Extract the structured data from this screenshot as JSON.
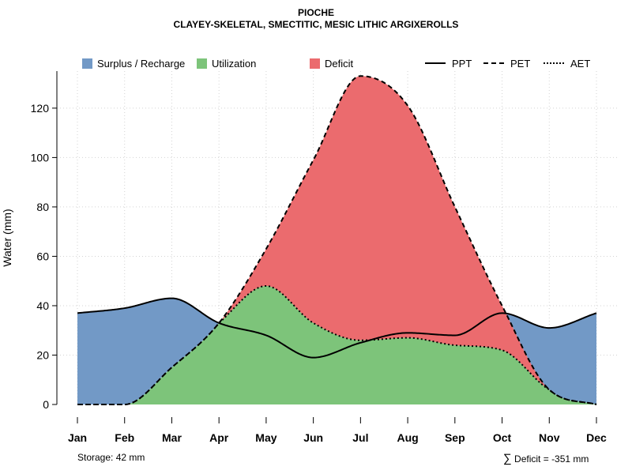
{
  "chart_data": {
    "type": "area",
    "title": "PIOCHE",
    "subtitle": "CLAYEY-SKELETAL, SMECTITIC, MESIC LITHIC ARGIXEROLLS",
    "xlabel": "",
    "ylabel": "Water (mm)",
    "categories": [
      "Jan",
      "Feb",
      "Mar",
      "Apr",
      "May",
      "Jun",
      "Jul",
      "Aug",
      "Sep",
      "Oct",
      "Nov",
      "Dec"
    ],
    "ylim": [
      0,
      135
    ],
    "yticks": [
      0,
      20,
      40,
      60,
      80,
      100,
      120
    ],
    "grid": true,
    "series": [
      {
        "name": "PPT",
        "values": [
          37,
          39,
          43,
          33,
          28,
          19,
          25,
          29,
          28,
          37,
          31,
          37
        ]
      },
      {
        "name": "PET",
        "values": [
          0,
          0,
          15,
          33,
          63,
          99,
          133,
          121,
          80,
          40,
          6,
          0
        ]
      },
      {
        "name": "AET",
        "values": [
          0,
          0,
          15,
          33,
          48,
          33,
          26,
          27,
          24,
          22,
          6,
          0
        ]
      }
    ],
    "areas": [
      "Surplus / Recharge",
      "Utilization",
      "Deficit"
    ],
    "colors": {
      "surplus": "#7299c6",
      "utilization": "#7dc47a",
      "deficit": "#eb6b6e",
      "axis": "#000000",
      "grid": "#d3d3d3"
    },
    "legend": [
      {
        "label": "Surplus / Recharge",
        "kind": "fill",
        "color": "#7299c6"
      },
      {
        "label": "Utilization",
        "kind": "fill",
        "color": "#7dc47a"
      },
      {
        "label": "Deficit",
        "kind": "fill",
        "color": "#eb6b6e"
      },
      {
        "label": "PPT",
        "kind": "line",
        "dash": "solid"
      },
      {
        "label": "PET",
        "kind": "line",
        "dash": "dashed"
      },
      {
        "label": "AET",
        "kind": "line",
        "dash": "dotted"
      }
    ],
    "legend_position": "top",
    "annotations": {
      "storage": "Storage: 42 mm",
      "deficit_symbol": "∑",
      "deficit": "Deficit = -351 mm"
    }
  }
}
